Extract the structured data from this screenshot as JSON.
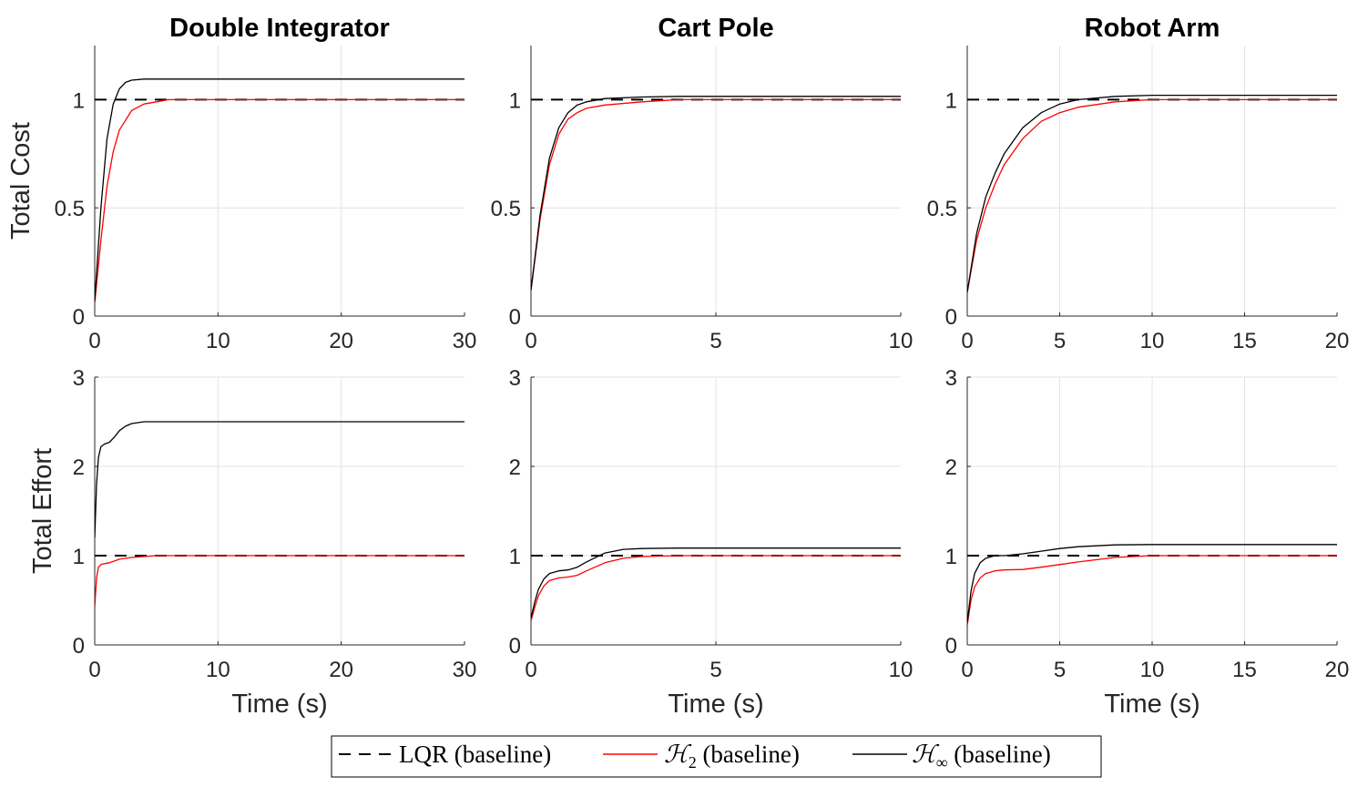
{
  "figure": {
    "colors": {
      "lqr": "#000000",
      "h2": "#ff0000",
      "hinf": "#000000",
      "grid": "#e3e3e3",
      "axis": "#262626"
    }
  },
  "chart_data": [
    {
      "type": "line",
      "title": "Double Integrator",
      "ylabel": "Total Cost",
      "xlabel": "",
      "xlim": [
        0,
        30
      ],
      "ylim": [
        0,
        1.25
      ],
      "xticks": [
        0,
        10,
        20,
        30
      ],
      "yticks": [
        0,
        0.5,
        1
      ],
      "ytick_labels": [
        "0",
        "0.5",
        "1"
      ],
      "grid": true,
      "series": [
        {
          "name": "LQR (baseline)",
          "style": "dashed",
          "color": "#000000",
          "x": [
            0,
            30
          ],
          "y": [
            1,
            1
          ]
        },
        {
          "name": "H2 (baseline)",
          "style": "solid",
          "color": "#ff0000",
          "x": [
            0,
            0.5,
            1,
            1.5,
            2,
            3,
            4,
            5,
            6,
            8,
            10,
            15,
            20,
            30
          ],
          "y": [
            0.06,
            0.35,
            0.6,
            0.76,
            0.86,
            0.95,
            0.98,
            0.99,
            1.0,
            1.0,
            1.0,
            1.0,
            1.0,
            1.0
          ]
        },
        {
          "name": "H∞ (baseline)",
          "style": "solid",
          "color": "#000000",
          "x": [
            0,
            0.5,
            1,
            1.5,
            2,
            2.5,
            3,
            4,
            5,
            10,
            20,
            30
          ],
          "y": [
            0.07,
            0.5,
            0.82,
            0.98,
            1.05,
            1.08,
            1.09,
            1.095,
            1.095,
            1.095,
            1.095,
            1.095
          ]
        }
      ]
    },
    {
      "type": "line",
      "title": "Cart Pole",
      "ylabel": "",
      "xlabel": "",
      "xlim": [
        0,
        10
      ],
      "ylim": [
        0,
        1.25
      ],
      "xticks": [
        0,
        5,
        10
      ],
      "yticks": [
        0,
        0.5,
        1
      ],
      "ytick_labels": [
        "0",
        "0.5",
        "1"
      ],
      "grid": true,
      "series": [
        {
          "name": "LQR (baseline)",
          "style": "dashed",
          "color": "#000000",
          "x": [
            0,
            10
          ],
          "y": [
            1,
            1
          ]
        },
        {
          "name": "H2 (baseline)",
          "style": "solid",
          "color": "#ff0000",
          "x": [
            0,
            0.25,
            0.5,
            0.75,
            1,
            1.25,
            1.5,
            2,
            3,
            4,
            5,
            6,
            10
          ],
          "y": [
            0.12,
            0.45,
            0.7,
            0.84,
            0.91,
            0.94,
            0.96,
            0.975,
            0.99,
            1.0,
            1.0,
            1.0,
            1.0
          ]
        },
        {
          "name": "H∞ (baseline)",
          "style": "solid",
          "color": "#000000",
          "x": [
            0,
            0.25,
            0.5,
            0.75,
            1,
            1.25,
            1.5,
            2,
            3,
            4,
            6,
            10
          ],
          "y": [
            0.12,
            0.47,
            0.73,
            0.87,
            0.94,
            0.975,
            0.99,
            1.005,
            1.012,
            1.015,
            1.015,
            1.015
          ]
        }
      ]
    },
    {
      "type": "line",
      "title": "Robot Arm",
      "ylabel": "",
      "xlabel": "",
      "xlim": [
        0,
        20
      ],
      "ylim": [
        0,
        1.25
      ],
      "xticks": [
        0,
        5,
        10,
        15,
        20
      ],
      "yticks": [
        0,
        0.5,
        1
      ],
      "ytick_labels": [
        "0",
        "0.5",
        "1"
      ],
      "grid": true,
      "series": [
        {
          "name": "LQR (baseline)",
          "style": "dashed",
          "color": "#000000",
          "x": [
            0,
            20
          ],
          "y": [
            1,
            1
          ]
        },
        {
          "name": "H2 (baseline)",
          "style": "solid",
          "color": "#ff0000",
          "x": [
            0,
            0.5,
            1,
            1.5,
            2,
            3,
            4,
            5,
            6,
            8,
            10,
            12,
            15,
            20
          ],
          "y": [
            0.11,
            0.35,
            0.5,
            0.61,
            0.7,
            0.82,
            0.9,
            0.94,
            0.965,
            0.99,
            1.0,
            1.0,
            1.0,
            1.0
          ]
        },
        {
          "name": "H∞ (baseline)",
          "style": "solid",
          "color": "#000000",
          "x": [
            0,
            0.5,
            1,
            1.5,
            2,
            3,
            4,
            5,
            6,
            8,
            10,
            12,
            15,
            20
          ],
          "y": [
            0.11,
            0.38,
            0.55,
            0.66,
            0.75,
            0.87,
            0.94,
            0.98,
            1.0,
            1.015,
            1.02,
            1.02,
            1.02,
            1.02
          ]
        }
      ]
    },
    {
      "type": "line",
      "title": "",
      "ylabel": "Total Effort",
      "xlabel": "Time (s)",
      "xlim": [
        0,
        30
      ],
      "ylim": [
        0,
        3
      ],
      "xticks": [
        0,
        10,
        20,
        30
      ],
      "yticks": [
        0,
        1,
        2,
        3
      ],
      "ytick_labels": [
        "0",
        "1",
        "2",
        "3"
      ],
      "grid": true,
      "series": [
        {
          "name": "LQR (baseline)",
          "style": "dashed",
          "color": "#000000",
          "x": [
            0,
            30
          ],
          "y": [
            1,
            1
          ]
        },
        {
          "name": "H2 (baseline)",
          "style": "solid",
          "color": "#ff0000",
          "x": [
            0,
            0.15,
            0.3,
            0.5,
            0.8,
            1.2,
            1.6,
            2,
            3,
            4,
            5,
            6,
            10,
            30
          ],
          "y": [
            0.42,
            0.75,
            0.87,
            0.9,
            0.91,
            0.92,
            0.94,
            0.96,
            0.98,
            0.99,
            1.0,
            1.0,
            1.0,
            1.0
          ]
        },
        {
          "name": "H∞ (baseline)",
          "style": "solid",
          "color": "#000000",
          "x": [
            0,
            0.15,
            0.3,
            0.5,
            0.8,
            1.2,
            1.6,
            2,
            2.5,
            3,
            4,
            5,
            6,
            10,
            30
          ],
          "y": [
            1.2,
            1.8,
            2.1,
            2.22,
            2.25,
            2.27,
            2.33,
            2.4,
            2.45,
            2.48,
            2.5,
            2.5,
            2.5,
            2.5,
            2.5
          ]
        }
      ]
    },
    {
      "type": "line",
      "title": "",
      "ylabel": "",
      "xlabel": "Time (s)",
      "xlim": [
        0,
        10
      ],
      "ylim": [
        0,
        3
      ],
      "xticks": [
        0,
        5,
        10
      ],
      "yticks": [
        0,
        1,
        2,
        3
      ],
      "ytick_labels": [
        "0",
        "1",
        "2",
        "3"
      ],
      "grid": true,
      "series": [
        {
          "name": "LQR (baseline)",
          "style": "dashed",
          "color": "#000000",
          "x": [
            0,
            10
          ],
          "y": [
            1,
            1
          ]
        },
        {
          "name": "H2 (baseline)",
          "style": "solid",
          "color": "#ff0000",
          "x": [
            0,
            0.1,
            0.2,
            0.35,
            0.5,
            0.75,
            1,
            1.25,
            1.5,
            2,
            2.5,
            3,
            4,
            5,
            10
          ],
          "y": [
            0.27,
            0.42,
            0.55,
            0.66,
            0.72,
            0.75,
            0.76,
            0.78,
            0.83,
            0.92,
            0.97,
            0.99,
            1.0,
            1.0,
            1.0
          ]
        },
        {
          "name": "H∞ (baseline)",
          "style": "solid",
          "color": "#000000",
          "x": [
            0,
            0.1,
            0.2,
            0.35,
            0.5,
            0.75,
            1,
            1.25,
            1.5,
            2,
            2.5,
            3,
            4,
            5,
            10
          ],
          "y": [
            0.3,
            0.48,
            0.62,
            0.74,
            0.8,
            0.83,
            0.84,
            0.87,
            0.93,
            1.03,
            1.07,
            1.08,
            1.085,
            1.085,
            1.085
          ]
        }
      ]
    },
    {
      "type": "line",
      "title": "",
      "ylabel": "",
      "xlabel": "Time (s)",
      "xlim": [
        0,
        20
      ],
      "ylim": [
        0,
        3
      ],
      "xticks": [
        0,
        5,
        10,
        15,
        20
      ],
      "yticks": [
        0,
        1,
        2,
        3
      ],
      "ytick_labels": [
        "0",
        "1",
        "2",
        "3"
      ],
      "grid": true,
      "series": [
        {
          "name": "LQR (baseline)",
          "style": "dashed",
          "color": "#000000",
          "x": [
            0,
            20
          ],
          "y": [
            1,
            1
          ]
        },
        {
          "name": "H2 (baseline)",
          "style": "solid",
          "color": "#ff0000",
          "x": [
            0,
            0.2,
            0.4,
            0.7,
            1,
            1.5,
            2,
            3,
            4,
            5,
            6,
            8,
            10,
            15,
            20
          ],
          "y": [
            0.22,
            0.5,
            0.65,
            0.75,
            0.8,
            0.83,
            0.84,
            0.845,
            0.87,
            0.9,
            0.93,
            0.98,
            1.0,
            1.0,
            1.0
          ]
        },
        {
          "name": "H∞ (baseline)",
          "style": "solid",
          "color": "#000000",
          "x": [
            0,
            0.2,
            0.4,
            0.7,
            1,
            1.5,
            2,
            3,
            4,
            5,
            6,
            8,
            10,
            15,
            20
          ],
          "y": [
            0.25,
            0.6,
            0.8,
            0.92,
            0.97,
            1.0,
            1.0,
            1.02,
            1.05,
            1.08,
            1.1,
            1.12,
            1.125,
            1.125,
            1.125
          ]
        }
      ]
    }
  ],
  "legend": {
    "entries": [
      {
        "key": "lqr",
        "label": "LQR (baseline)",
        "symbol": "",
        "subscript": ""
      },
      {
        "key": "h2",
        "label": " (baseline)",
        "symbol": "ℋ",
        "subscript": "2"
      },
      {
        "key": "hinf",
        "label": " (baseline)",
        "symbol": "ℋ",
        "subscript": "∞"
      }
    ],
    "placement": "bottom-center"
  }
}
